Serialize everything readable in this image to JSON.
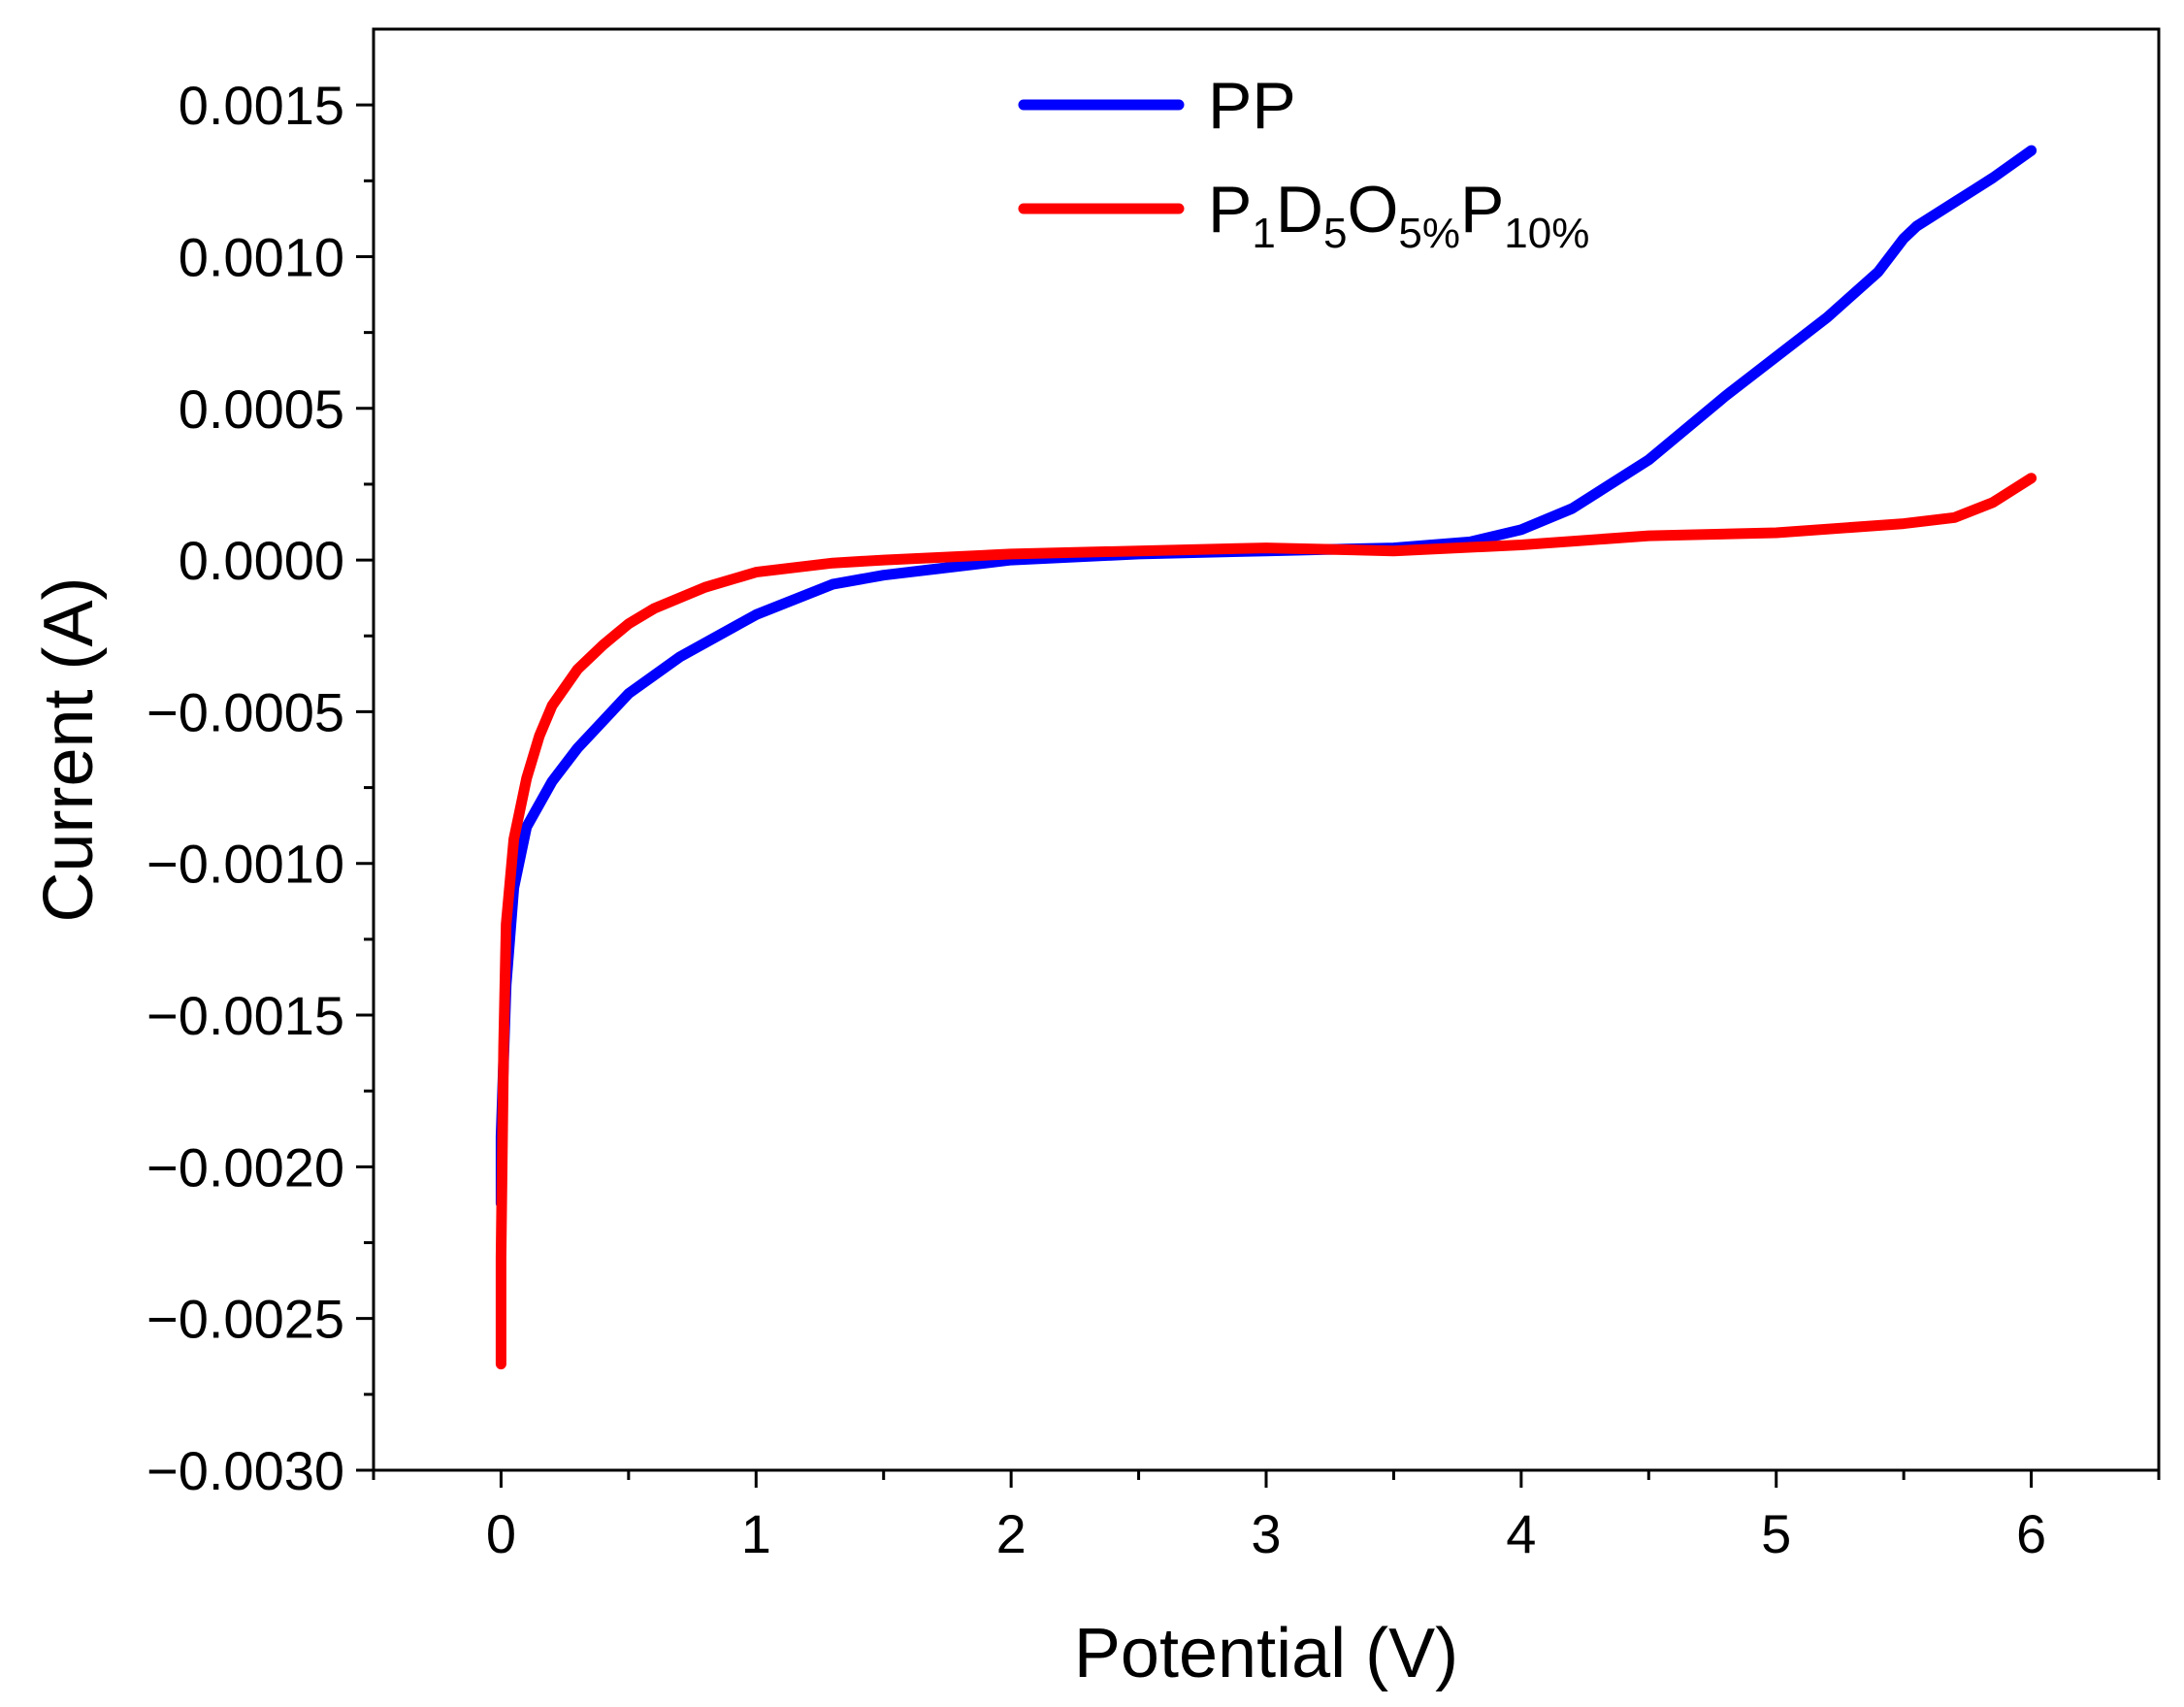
{
  "chart_data": {
    "type": "line",
    "title": "",
    "xlabel": "Potential (V)",
    "ylabel": "Current (A)",
    "xlim": [
      -0.5,
      6.5
    ],
    "ylim": [
      -0.003,
      0.00175
    ],
    "x_ticks": [
      0,
      1,
      2,
      3,
      4,
      5,
      6
    ],
    "x_tick_labels": [
      "0",
      "1",
      "2",
      "3",
      "4",
      "5",
      "6"
    ],
    "y_ticks": [
      0.0015,
      0.001,
      0.0005,
      0.0,
      -0.0005,
      -0.001,
      -0.0015,
      -0.002,
      -0.0025,
      -0.003
    ],
    "y_tick_labels": [
      "0.0015",
      "0.0010",
      "0.0005",
      "0.0000",
      "−0.0005",
      "−0.0010",
      "−0.0015",
      "−0.0020",
      "−0.0025",
      "−0.0030"
    ],
    "grid": false,
    "legend_position": "top-center",
    "series": [
      {
        "name": "PP",
        "color": "#0000ff",
        "x": [
          0.0,
          0.0,
          0.02,
          0.05,
          0.1,
          0.2,
          0.3,
          0.5,
          0.7,
          1.0,
          1.3,
          1.5,
          2.0,
          2.5,
          3.0,
          3.5,
          3.8,
          4.0,
          4.2,
          4.5,
          4.8,
          5.0,
          5.2,
          5.4,
          5.5,
          5.55,
          5.7,
          5.85,
          6.0
        ],
        "y": [
          -0.00212,
          -0.0019,
          -0.0014,
          -0.00108,
          -0.00088,
          -0.00073,
          -0.00062,
          -0.00044,
          -0.00032,
          -0.00018,
          -8e-05,
          -5e-05,
          0.0,
          2e-05,
          3e-05,
          4e-05,
          6e-05,
          0.0001,
          0.00017,
          0.00033,
          0.00054,
          0.00067,
          0.0008,
          0.00095,
          0.00106,
          0.0011,
          0.00118,
          0.00126,
          0.00135
        ]
      },
      {
        "name": "P1D5O5%P10%",
        "color": "#ff0000",
        "x": [
          0.0,
          0.0,
          0.01,
          0.02,
          0.05,
          0.1,
          0.15,
          0.2,
          0.3,
          0.4,
          0.5,
          0.6,
          0.8,
          1.0,
          1.3,
          1.5,
          2.0,
          2.5,
          3.0,
          3.5,
          4.0,
          4.5,
          5.0,
          5.5,
          5.7,
          5.85,
          6.0
        ],
        "y": [
          -0.00265,
          -0.0023,
          -0.0016,
          -0.0012,
          -0.00092,
          -0.00072,
          -0.00058,
          -0.00048,
          -0.00036,
          -0.00028,
          -0.00021,
          -0.00016,
          -9e-05,
          -4e-05,
          -1e-05,
          0.0,
          2e-05,
          3e-05,
          4e-05,
          3e-05,
          5e-05,
          8e-05,
          9e-05,
          0.00012,
          0.00014,
          0.00019,
          0.00027
        ]
      }
    ],
    "legend": [
      {
        "series": 0,
        "parts": [
          {
            "text": "PP",
            "sub": false
          }
        ]
      },
      {
        "series": 1,
        "parts": [
          {
            "text": "P",
            "sub": false
          },
          {
            "text": "1",
            "sub": true
          },
          {
            "text": "D",
            "sub": false
          },
          {
            "text": "5",
            "sub": true
          },
          {
            "text": "O",
            "sub": false
          },
          {
            "text": "5%",
            "sub": true
          },
          {
            "text": "P",
            "sub": false
          },
          {
            "text": "10%",
            "sub": true
          }
        ]
      }
    ]
  }
}
